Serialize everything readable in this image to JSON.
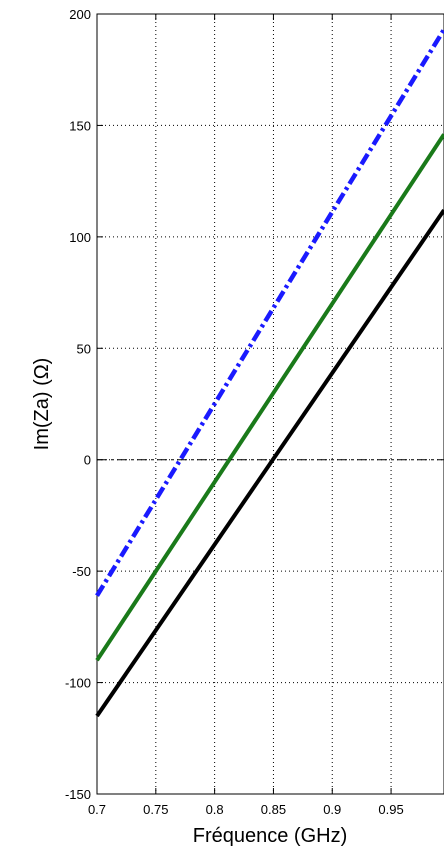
{
  "chart_data": {
    "type": "line",
    "xlabel": "Fréquence (GHz)",
    "ylabel": "Im(Za) (Ω)",
    "xlim": [
      0.7,
      0.995
    ],
    "ylim": [
      -150,
      200
    ],
    "xticks": [
      0.7,
      0.75,
      0.8,
      0.85,
      0.9,
      0.95
    ],
    "xtick_labels": [
      "0.7",
      "0.75",
      "0.8",
      "0.85",
      "0.9",
      "0.95"
    ],
    "yticks": [
      -150,
      -100,
      -50,
      0,
      50,
      100,
      150,
      200
    ],
    "ytick_labels": [
      "-150",
      "-100",
      "-50",
      "0",
      "50",
      "100",
      "150",
      "200"
    ],
    "grid": true,
    "series": [
      {
        "color": "#000000",
        "style": "solid",
        "x": [
          0.7,
          0.995
        ],
        "y": [
          -115,
          112
        ]
      },
      {
        "color": "#1a7a1a",
        "style": "solid",
        "x": [
          0.7,
          0.995
        ],
        "y": [
          -90,
          146
        ]
      },
      {
        "color": "#1a1aff",
        "style": "dashdot",
        "x": [
          0.7,
          0.995
        ],
        "y": [
          -61,
          193
        ]
      },
      {
        "color": "#000000",
        "style": "dashdot-thin",
        "x": [
          0.7,
          0.995
        ],
        "y": [
          0,
          0
        ]
      }
    ]
  }
}
